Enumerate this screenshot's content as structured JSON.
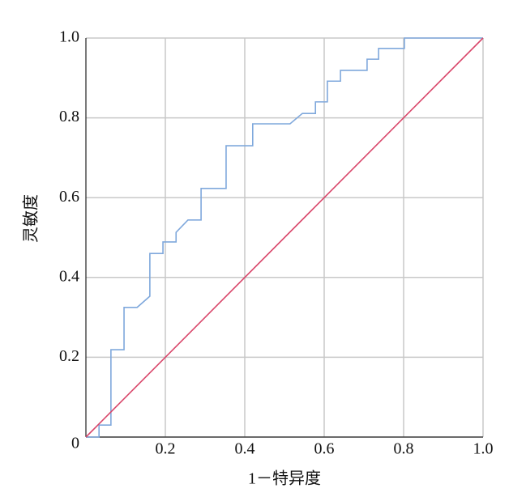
{
  "chart_data": {
    "type": "line",
    "x_label": "1－特异度",
    "y_label": "灵敏度",
    "xlim": [
      0,
      1
    ],
    "ylim": [
      0,
      1
    ],
    "xticks": [
      0.2,
      0.4,
      0.6,
      0.8,
      {
        "value": 1,
        "label": "1.0"
      }
    ],
    "yticks": [
      0,
      0.2,
      0.4,
      0.6,
      0.8,
      {
        "value": 1,
        "label": "1.0"
      }
    ],
    "grid": true,
    "series": [
      {
        "color": "#7fa8dc",
        "x": [
          0,
          0.033,
          0.033,
          0.063,
          0.063,
          0.096,
          0.096,
          0.129,
          0.161,
          0.161,
          0.194,
          0.194,
          0.227,
          0.227,
          0.257,
          0.29,
          0.29,
          0.353,
          0.353,
          0.42,
          0.42,
          0.514,
          0.545,
          0.578,
          0.578,
          0.608,
          0.608,
          0.641,
          0.641,
          0.708,
          0.708,
          0.737,
          0.737,
          0.802,
          0.802,
          1
        ],
        "values": [
          0,
          0,
          0.03,
          0.03,
          0.219,
          0.219,
          0.325,
          0.325,
          0.353,
          0.46,
          0.46,
          0.489,
          0.489,
          0.513,
          0.544,
          0.544,
          0.623,
          0.623,
          0.73,
          0.73,
          0.785,
          0.785,
          0.811,
          0.811,
          0.84,
          0.84,
          0.892,
          0.892,
          0.919,
          0.919,
          0.947,
          0.947,
          0.974,
          0.974,
          1,
          1
        ]
      },
      {
        "color": "#d9466a",
        "x": [
          0,
          1
        ],
        "values": [
          0,
          1
        ]
      }
    ]
  }
}
